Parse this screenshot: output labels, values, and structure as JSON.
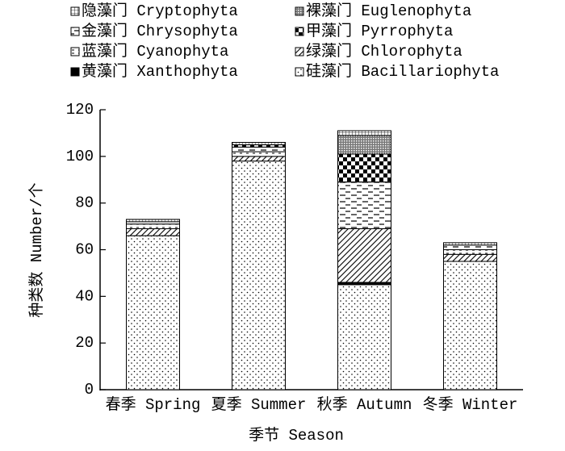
{
  "chart_data": {
    "type": "stacked_bar",
    "x_label": "季节 Season",
    "y_label": "种类数 Number/个",
    "categories": [
      "春季 Spring",
      "夏季 Summer",
      "秋季 Autumn",
      "冬季 Winter"
    ],
    "ylim": [
      0,
      120
    ],
    "yticks": [
      0,
      20,
      40,
      60,
      80,
      100,
      120
    ],
    "series": [
      {
        "name": "硅藻门 Bacillariophyta",
        "pattern": "dots",
        "values": [
          66,
          98,
          45,
          55
        ]
      },
      {
        "name": "黄藻门 Xanthophyta",
        "pattern": "solid",
        "values": [
          0,
          0,
          1,
          0
        ]
      },
      {
        "name": "绿藻门 Chlorophyta",
        "pattern": "diagonal",
        "values": [
          3,
          2,
          23,
          3
        ]
      },
      {
        "name": "蓝藻门 Cyanophyta",
        "pattern": "smalldash",
        "values": [
          2,
          2,
          0,
          2
        ]
      },
      {
        "name": "金藻门 Chrysophyta",
        "pattern": "dash",
        "values": [
          1,
          2,
          20,
          2
        ]
      },
      {
        "name": "甲藻门 Pyrrophyta",
        "pattern": "checker",
        "values": [
          0,
          1,
          12,
          0
        ]
      },
      {
        "name": "裸藻门 Euglenophyta",
        "pattern": "stipple",
        "values": [
          0,
          0,
          8,
          0
        ]
      },
      {
        "name": "隐藻门 Cryptophyta",
        "pattern": "grid",
        "values": [
          1,
          1,
          2,
          1
        ]
      }
    ],
    "legend_order": [
      7,
      6,
      4,
      5,
      3,
      2,
      1,
      0
    ]
  }
}
